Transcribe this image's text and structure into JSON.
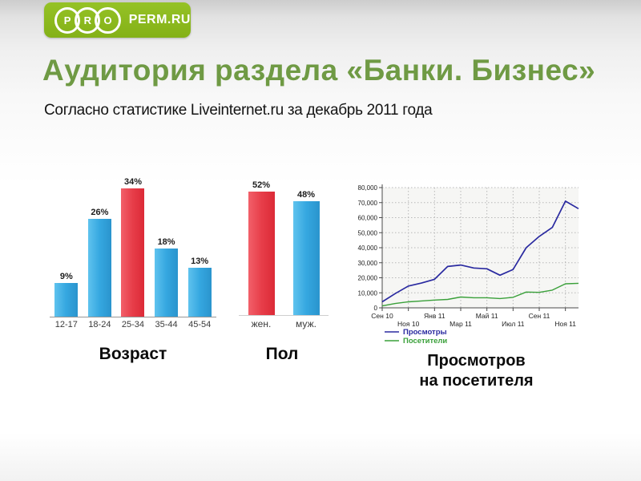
{
  "slide": {
    "logo": {
      "circle_letters": [
        "P",
        "R",
        "O"
      ],
      "text": "PERM.RU"
    },
    "title": "Аудитория раздела «Банки. Бизнес»",
    "subtitle": "Согласно статистике Liveinternet.ru за декабрь 2011 года"
  },
  "colors": {
    "logo_green": "#8cb71c",
    "title_green": "#6f9a44",
    "bar_blue": "#35a7e0",
    "bar_red": "#e73d49",
    "line_views_blue": "#2a2aa0",
    "line_visitors_green": "#3aa03a"
  },
  "chart_data": [
    {
      "type": "bar",
      "title": "Возраст",
      "categories": [
        "12-17",
        "18-24",
        "25-34",
        "35-44",
        "45-54"
      ],
      "values": [
        9,
        26,
        34,
        18,
        13
      ],
      "value_labels": [
        "9%",
        "26%",
        "34%",
        "18%",
        "13%"
      ],
      "unit": "%",
      "ylim": [
        0,
        36
      ],
      "bar_color": "#35a7e0",
      "highlight_index": 2,
      "highlight_color": "#e73d49"
    },
    {
      "type": "bar",
      "title": "Пол",
      "categories": [
        "жен.",
        "муж."
      ],
      "values": [
        52,
        48
      ],
      "value_labels": [
        "52%",
        "48%"
      ],
      "unit": "%",
      "ylim": [
        0,
        56
      ],
      "bar_color": "#35a7e0",
      "highlight_index": 0,
      "highlight_color": "#e73d49"
    },
    {
      "type": "line",
      "title": "Просмотров\nна посетителя",
      "x_tick_labels": [
        "Сен 10",
        "Ноя 10",
        "Янв 11",
        "Мар 11",
        "Май 11",
        "Июл 11",
        "Сен 11",
        "Ноя 11"
      ],
      "y_tick_labels": [
        "0",
        "10,000",
        "20,000",
        "30,000",
        "40,000",
        "50,000",
        "60,000",
        "70,000",
        "80,000"
      ],
      "ylim": [
        0,
        80000
      ],
      "grid": true,
      "legend_position": "bottom-left",
      "series": [
        {
          "name": "Просмотры",
          "color": "#2a2aa0",
          "values": [
            4000,
            9500,
            14500,
            16500,
            19000,
            27500,
            28500,
            26500,
            26000,
            21700,
            25500,
            40000,
            47500,
            53500,
            71000,
            66000
          ]
        },
        {
          "name": "Посетители",
          "color": "#3aa03a",
          "values": [
            1300,
            2900,
            4000,
            4600,
            5200,
            5600,
            7200,
            6700,
            6700,
            6200,
            7000,
            10500,
            10300,
            11800,
            16000,
            16300
          ]
        }
      ]
    }
  ]
}
